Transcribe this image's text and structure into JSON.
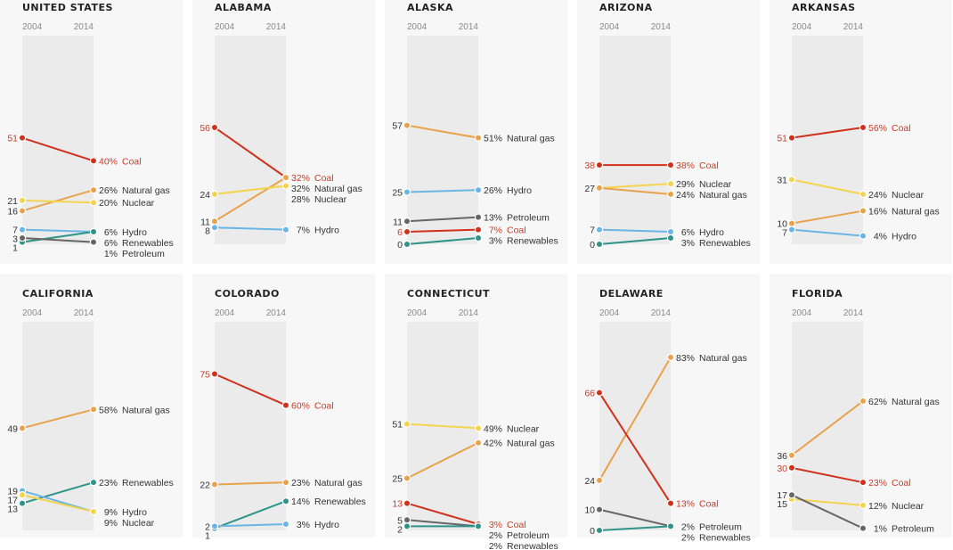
{
  "chart_data": [
    {
      "type": "line",
      "title": "UNITED STATES",
      "x": [
        "2004",
        "2014"
      ],
      "ylim": [
        0,
        100
      ],
      "series": [
        {
          "name": "Coal",
          "values": [
            51,
            40
          ]
        },
        {
          "name": "Natural gas",
          "values": [
            16,
            26
          ]
        },
        {
          "name": "Nuclear",
          "values": [
            21,
            20
          ]
        },
        {
          "name": "Hydro",
          "values": [
            7,
            6
          ]
        },
        {
          "name": "Renewables",
          "values": [
            1,
            6
          ]
        },
        {
          "name": "Petroleum",
          "values": [
            3,
            1
          ]
        }
      ]
    },
    {
      "type": "line",
      "title": "ALABAMA",
      "x": [
        "2004",
        "2014"
      ],
      "ylim": [
        0,
        100
      ],
      "series": [
        {
          "name": "Coal",
          "values": [
            56,
            32
          ]
        },
        {
          "name": "Natural gas",
          "values": [
            11,
            32
          ]
        },
        {
          "name": "Nuclear",
          "values": [
            24,
            28
          ]
        },
        {
          "name": "Hydro",
          "values": [
            8,
            7
          ]
        }
      ]
    },
    {
      "type": "line",
      "title": "ALASKA",
      "x": [
        "2004",
        "2014"
      ],
      "ylim": [
        0,
        100
      ],
      "series": [
        {
          "name": "Natural gas",
          "values": [
            57,
            51
          ]
        },
        {
          "name": "Hydro",
          "values": [
            25,
            26
          ]
        },
        {
          "name": "Petroleum",
          "values": [
            11,
            13
          ]
        },
        {
          "name": "Coal",
          "values": [
            6,
            7
          ]
        },
        {
          "name": "Renewables",
          "values": [
            0,
            3
          ]
        }
      ]
    },
    {
      "type": "line",
      "title": "ARIZONA",
      "x": [
        "2004",
        "2014"
      ],
      "ylim": [
        0,
        100
      ],
      "series": [
        {
          "name": "Coal",
          "values": [
            38,
            38
          ]
        },
        {
          "name": "Nuclear",
          "values": [
            27,
            29
          ]
        },
        {
          "name": "Natural gas",
          "values": [
            27,
            24
          ]
        },
        {
          "name": "Hydro",
          "values": [
            7,
            6
          ]
        },
        {
          "name": "Renewables",
          "values": [
            0,
            3
          ]
        }
      ]
    },
    {
      "type": "line",
      "title": "ARKANSAS",
      "x": [
        "2004",
        "2014"
      ],
      "ylim": [
        0,
        100
      ],
      "series": [
        {
          "name": "Coal",
          "values": [
            51,
            56
          ]
        },
        {
          "name": "Nuclear",
          "values": [
            31,
            24
          ]
        },
        {
          "name": "Natural gas",
          "values": [
            10,
            16
          ]
        },
        {
          "name": "Hydro",
          "values": [
            7,
            4
          ]
        }
      ]
    },
    {
      "type": "line",
      "title": "CALIFORNIA",
      "x": [
        "2004",
        "2014"
      ],
      "ylim": [
        0,
        100
      ],
      "series": [
        {
          "name": "Natural gas",
          "values": [
            49,
            58
          ]
        },
        {
          "name": "Renewables",
          "values": [
            13,
            23
          ]
        },
        {
          "name": "Hydro",
          "values": [
            19,
            9
          ]
        },
        {
          "name": "Nuclear",
          "values": [
            17,
            9
          ]
        }
      ]
    },
    {
      "type": "line",
      "title": "COLORADO",
      "x": [
        "2004",
        "2014"
      ],
      "ylim": [
        0,
        100
      ],
      "series": [
        {
          "name": "Coal",
          "values": [
            75,
            60
          ]
        },
        {
          "name": "Natural gas",
          "values": [
            22,
            23
          ]
        },
        {
          "name": "Renewables",
          "values": [
            1,
            14
          ]
        },
        {
          "name": "Hydro",
          "values": [
            2,
            3
          ]
        }
      ]
    },
    {
      "type": "line",
      "title": "CONNECTICUT",
      "x": [
        "2004",
        "2014"
      ],
      "ylim": [
        0,
        100
      ],
      "series": [
        {
          "name": "Nuclear",
          "values": [
            51,
            49
          ]
        },
        {
          "name": "Natural gas",
          "values": [
            25,
            42
          ]
        },
        {
          "name": "Coal",
          "values": [
            13,
            3
          ]
        },
        {
          "name": "Petroleum",
          "values": [
            5,
            2
          ]
        },
        {
          "name": "Renewables",
          "values": [
            2,
            2
          ]
        }
      ]
    },
    {
      "type": "line",
      "title": "DELAWARE",
      "x": [
        "2004",
        "2014"
      ],
      "ylim": [
        0,
        100
      ],
      "series": [
        {
          "name": "Natural gas",
          "values": [
            24,
            83
          ]
        },
        {
          "name": "Coal",
          "values": [
            66,
            13
          ]
        },
        {
          "name": "Petroleum",
          "values": [
            10,
            2
          ]
        },
        {
          "name": "Renewables",
          "values": [
            0,
            2
          ]
        }
      ]
    },
    {
      "type": "line",
      "title": "FLORIDA",
      "x": [
        "2004",
        "2014"
      ],
      "ylim": [
        0,
        100
      ],
      "series": [
        {
          "name": "Natural gas",
          "values": [
            36,
            62
          ]
        },
        {
          "name": "Coal",
          "values": [
            30,
            23
          ]
        },
        {
          "name": "Nuclear",
          "values": [
            15,
            12
          ]
        },
        {
          "name": "Petroleum",
          "values": [
            17,
            1
          ]
        }
      ]
    }
  ],
  "colors": {
    "Coal": "#d0311c",
    "Natural gas": "#e9a24c",
    "Nuclear": "#f3d44e",
    "Hydro": "#6bb5e6",
    "Renewables": "#2e9489",
    "Petroleum": "#666666"
  },
  "coal_label_color": "#d23a21",
  "band_color": "#ebebeb"
}
